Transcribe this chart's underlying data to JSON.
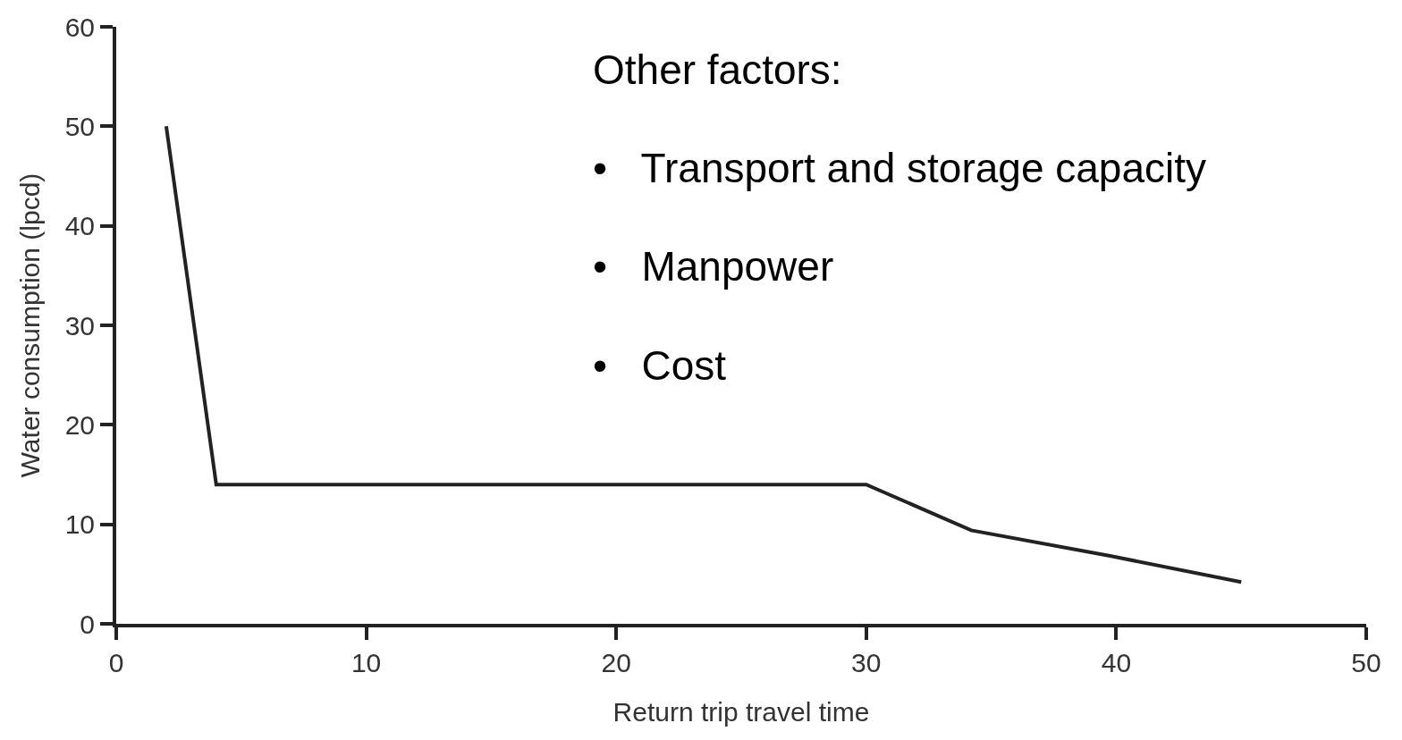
{
  "chart_data": {
    "type": "line",
    "xlabel": "Return trip travel time",
    "ylabel": "Water consumption (lpcd)",
    "x": [
      2,
      4,
      30,
      34.2,
      39.8,
      45
    ],
    "series": [
      {
        "color": "#222222",
        "values": [
          50,
          14,
          14,
          9.4,
          6.8,
          4.2
        ]
      }
    ],
    "xlim": [
      0,
      50
    ],
    "xticks": [
      0,
      10,
      20,
      30,
      40,
      50
    ],
    "ylim": [
      0,
      60
    ],
    "yticks": [
      0,
      10,
      20,
      30,
      40,
      50,
      60
    ],
    "grid": false,
    "legend": false,
    "marker": "none",
    "line_style": "solid",
    "annotations": [
      "Other factors:",
      "•   Transport and storage capacity",
      "•   Manpower",
      "•   Cost"
    ]
  }
}
